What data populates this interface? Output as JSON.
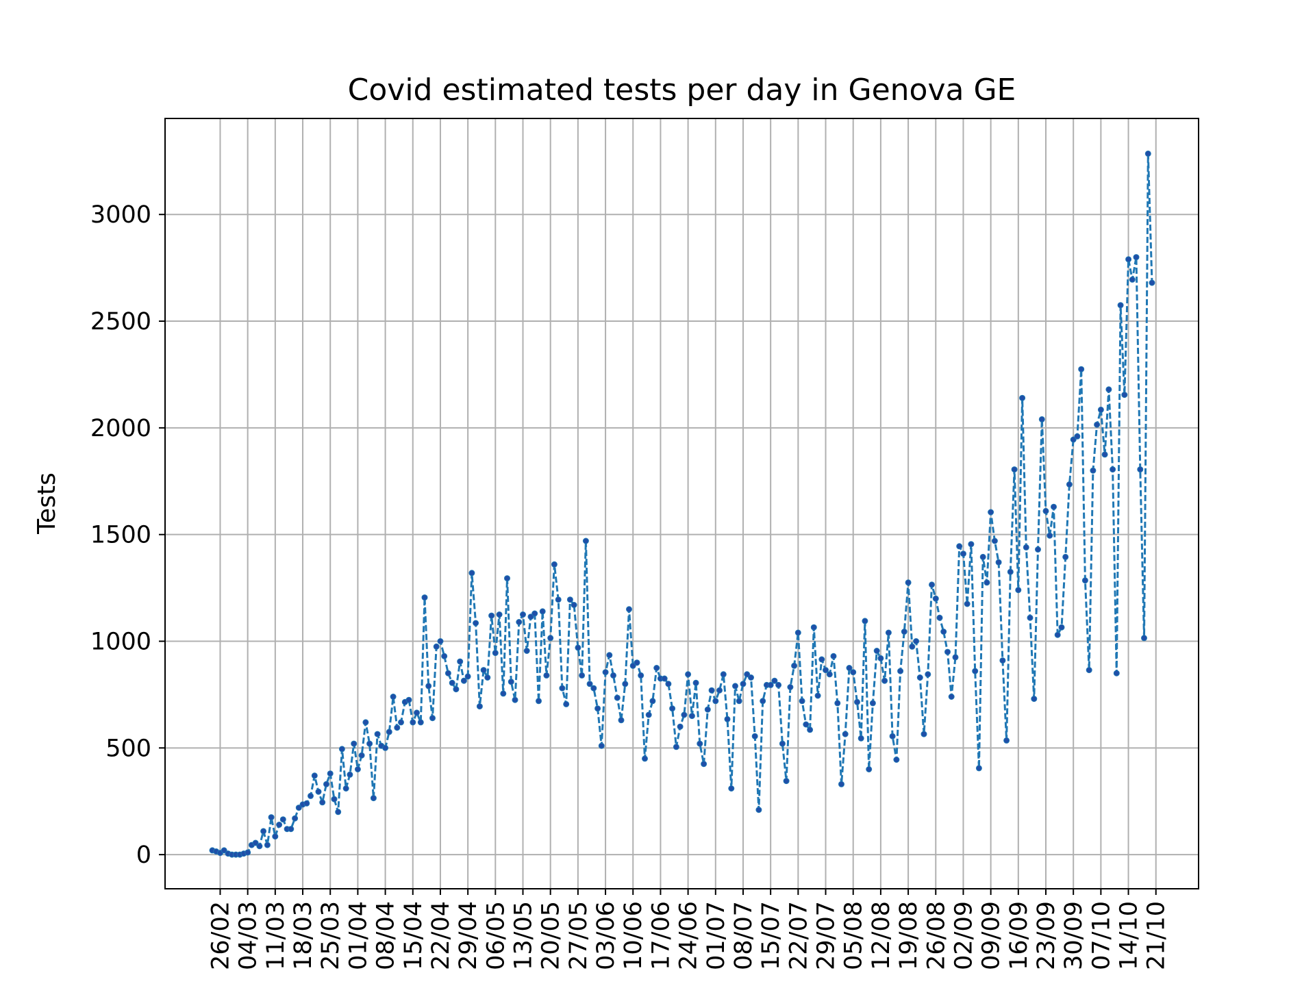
{
  "chart_data": {
    "type": "line",
    "title": "Covid estimated tests per day in Genova GE",
    "xlabel": "",
    "ylabel": "Tests",
    "x_ticks": [
      "26/02",
      "04/03",
      "11/03",
      "18/03",
      "25/03",
      "01/04",
      "08/04",
      "15/04",
      "22/04",
      "29/04",
      "06/05",
      "13/05",
      "20/05",
      "27/05",
      "03/06",
      "10/06",
      "17/06",
      "24/06",
      "01/07",
      "08/07",
      "15/07",
      "22/07",
      "29/07",
      "05/08",
      "12/08",
      "19/08",
      "26/08",
      "02/09",
      "09/09",
      "16/09",
      "23/09",
      "30/09",
      "07/10",
      "14/10",
      "21/10"
    ],
    "y_ticks": [
      0,
      500,
      1000,
      1500,
      2000,
      2500,
      3000
    ],
    "ylim": [
      -160,
      3450
    ],
    "grid": true,
    "line_style": "dashed",
    "marker": "dot",
    "color": "#1f77b4",
    "start_date": "2020-02-24",
    "series": [
      {
        "name": "",
        "values": [
          20,
          15,
          8,
          20,
          5,
          0,
          0,
          0,
          5,
          10,
          45,
          55,
          40,
          110,
          45,
          175,
          85,
          140,
          165,
          120,
          120,
          170,
          220,
          235,
          240,
          275,
          370,
          295,
          245,
          330,
          380,
          260,
          200,
          495,
          310,
          375,
          520,
          400,
          465,
          620,
          520,
          265,
          565,
          510,
          500,
          575,
          740,
          595,
          620,
          715,
          725,
          620,
          665,
          620,
          1205,
          790,
          640,
          975,
          1000,
          930,
          850,
          805,
          775,
          905,
          815,
          835,
          1320,
          1085,
          695,
          865,
          830,
          1120,
          945,
          1125,
          755,
          1295,
          810,
          725,
          1090,
          1125,
          955,
          1115,
          1130,
          720,
          1140,
          840,
          1015,
          1360,
          1195,
          780,
          705,
          1195,
          1170,
          970,
          840,
          1470,
          800,
          780,
          685,
          510,
          855,
          935,
          840,
          735,
          630,
          800,
          1150,
          885,
          900,
          840,
          450,
          655,
          720,
          875,
          825,
          825,
          800,
          685,
          505,
          600,
          655,
          845,
          650,
          805,
          520,
          425,
          680,
          770,
          720,
          770,
          845,
          635,
          310,
          790,
          720,
          800,
          845,
          830,
          555,
          210,
          720,
          795,
          795,
          815,
          795,
          520,
          345,
          785,
          885,
          1040,
          720,
          610,
          585,
          1065,
          745,
          915,
          865,
          845,
          930,
          710,
          330,
          565,
          875,
          855,
          715,
          545,
          1095,
          400,
          710,
          955,
          920,
          815,
          1040,
          555,
          445,
          860,
          1045,
          1275,
          975,
          1000,
          830,
          565,
          845,
          1265,
          1200,
          1110,
          1045,
          950,
          740,
          925,
          1445,
          1410,
          1175,
          1455,
          860,
          405,
          1395,
          1275,
          1605,
          1470,
          1370,
          910,
          535,
          1325,
          1805,
          1240,
          2140,
          1440,
          1110,
          730,
          1430,
          2040,
          1610,
          1495,
          1630,
          1030,
          1065,
          1395,
          1735,
          1945,
          1960,
          2275,
          1285,
          865,
          1800,
          2015,
          2085,
          1875,
          2180,
          1805,
          850,
          2575,
          2155,
          2790,
          2695,
          2800,
          1805,
          1015,
          3285,
          2680
        ]
      }
    ]
  }
}
